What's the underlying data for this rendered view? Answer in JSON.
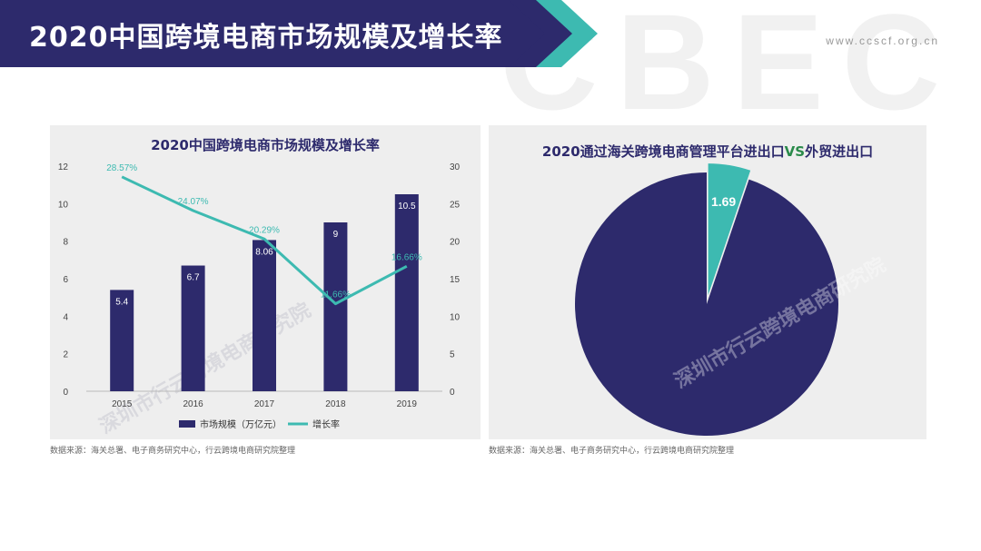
{
  "header": {
    "title": "2020中国跨境电商市场规模及增长率",
    "url": "www.ccscf.org.cn",
    "bg_color": "#2d2a6c",
    "accent_color": "#3dbab1"
  },
  "watermark": {
    "text": "深圳市行云跨境电商研究院",
    "logo": "CBEC"
  },
  "left_chart": {
    "source": "数据来源：海关总署、电子商务研究中心，行云跨境电商研究院整理"
  },
  "right_chart": {
    "source": "数据来源：海关总署、电子商务研究中心，行云跨境电商研究院整理"
  },
  "chart_data": [
    {
      "type": "bar",
      "title": "2020中国跨境电商市场规模及增长率",
      "categories": [
        "2015",
        "2016",
        "2017",
        "2018",
        "2019"
      ],
      "series": [
        {
          "name": "市场规模（万亿元）",
          "type": "bar",
          "axis": "left",
          "color": "#2d2a6c",
          "values": [
            5.4,
            6.7,
            8.06,
            9,
            10.5
          ],
          "labels": [
            "5.4",
            "6.7",
            "8.06",
            "9",
            "10.5"
          ]
        },
        {
          "name": "增长率",
          "type": "line",
          "axis": "right",
          "color": "#3dbab1",
          "values": [
            28.57,
            24.07,
            20.29,
            11.66,
            16.66
          ],
          "labels": [
            "28.57%",
            "24.07%",
            "20.29%",
            "11.66%",
            "16.66%"
          ]
        }
      ],
      "ylim_left": [
        0,
        12
      ],
      "yticks_left": [
        "0",
        "2",
        "4",
        "6",
        "8",
        "10",
        "12"
      ],
      "ylim_right": [
        0,
        30
      ],
      "yticks_right": [
        "0",
        "5",
        "10",
        "15",
        "20",
        "25",
        "30"
      ],
      "legend": "bottom",
      "grid": false
    },
    {
      "type": "pie",
      "title_parts": [
        "2020通过海关跨境电商管理平台进出口",
        "VS",
        "外贸进出口"
      ],
      "vs_color": "#2a8a4a",
      "slices": [
        {
          "value": 1.69,
          "label": "1.69",
          "color": "#3dbab1",
          "exploded": true
        },
        {
          "value": 30.81,
          "color": "#2d2a6c"
        }
      ]
    }
  ]
}
